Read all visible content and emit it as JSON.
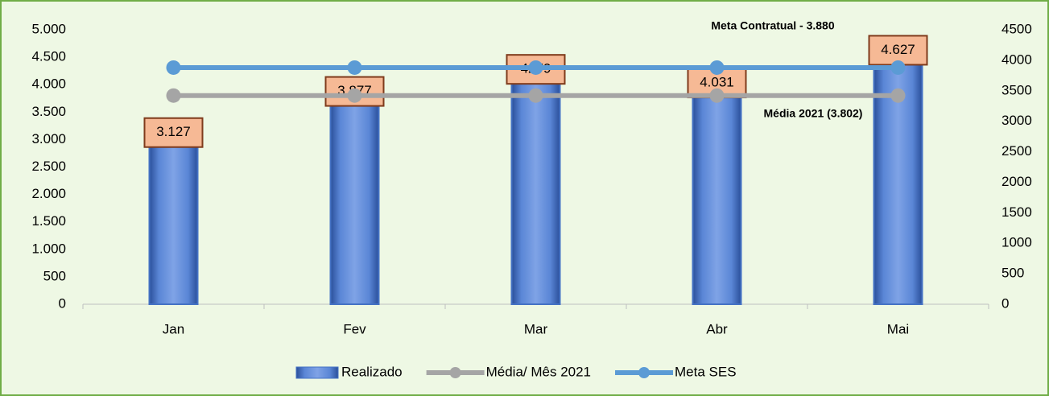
{
  "chart_data": {
    "type": "bar",
    "categories": [
      "Jan",
      "Fev",
      "Mar",
      "Abr",
      "Mai"
    ],
    "series": [
      {
        "name": "Realizado",
        "type": "bar",
        "color": "#4472c4",
        "values": [
          3127,
          3877,
          4279,
          4031,
          4627
        ],
        "value_labels": [
          "3.127",
          "3.877",
          "4279",
          "4.031",
          "4.627"
        ]
      },
      {
        "name": "Média/ Mês 2021",
        "type": "line",
        "color": "#a5a5a5",
        "values": [
          3802,
          3802,
          3802,
          3802,
          3802
        ]
      },
      {
        "name": "Meta SES",
        "type": "line",
        "color": "#5b9bd5",
        "axis": "y2",
        "values": [
          3880,
          3880,
          3880,
          3880,
          3880
        ]
      }
    ],
    "annotations": [
      "Meta Contratual - 3.880",
      "Média  2021 (3.802)"
    ],
    "ylim": [
      0,
      5000
    ],
    "yticks": [
      0,
      500,
      {
        "value": 1000,
        "label": "1.000"
      },
      {
        "value": 1500,
        "label": "1.500"
      },
      {
        "value": 2000,
        "label": "2.000"
      },
      {
        "value": 2500,
        "label": "2.500"
      },
      {
        "value": 3000,
        "label": "3.000"
      },
      {
        "value": 3500,
        "label": "3.500"
      },
      {
        "value": 4000,
        "label": "4.000"
      },
      {
        "value": 4500,
        "label": "4.500"
      },
      {
        "value": 5000,
        "label": "5.000"
      }
    ],
    "y2lim": [
      0,
      4500
    ],
    "y2ticks": [
      0,
      500,
      1000,
      1500,
      2000,
      2500,
      3000,
      3500,
      4000,
      4500
    ],
    "legend": "bottom"
  }
}
